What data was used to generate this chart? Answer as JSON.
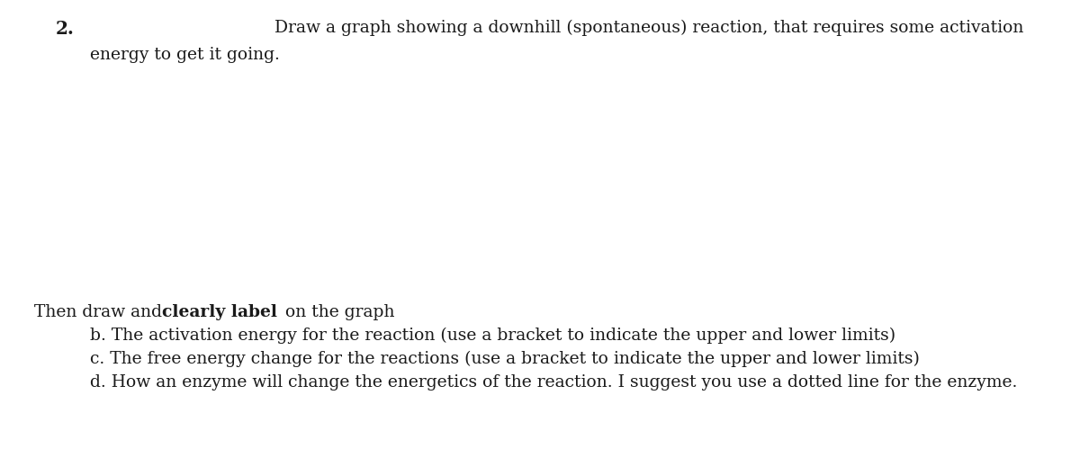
{
  "question_number": "2.",
  "line1": "Draw a graph showing a downhill (spontaneous) reaction, that requires some activation",
  "line2": "energy to get it going.",
  "then_prefix": "Then draw and ",
  "then_bold": "clearly label",
  "then_suffix": " on the graph",
  "item_b": "b. The activation energy for the reaction (use a bracket to indicate the upper and lower limits)",
  "item_c": "c. The free energy change for the reactions (use a bracket to indicate the upper and lower limits)",
  "item_d": "d. How an enzyme will change the energetics of the reaction. I suggest you use a dotted line for the enzyme.",
  "background_color": "#ffffff",
  "text_color": "#1a1a1a",
  "font_size": 13.5,
  "question_font_size": 14.5,
  "fig_width": 12.0,
  "fig_height": 5.19,
  "dpi": 100
}
